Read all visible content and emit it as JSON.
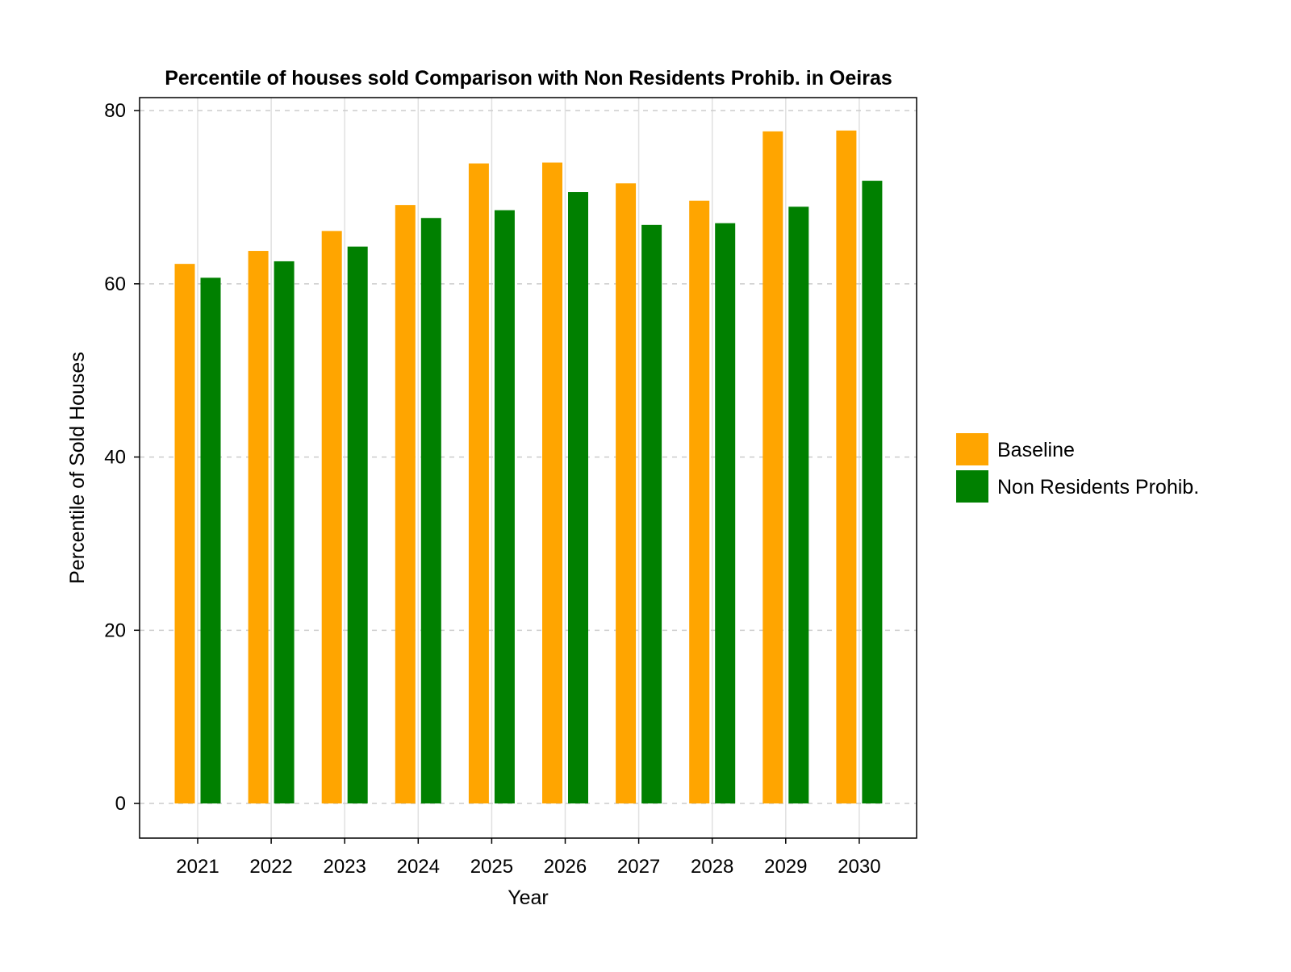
{
  "chart_data": {
    "type": "bar",
    "title": "Percentile of houses sold Comparison with Non Residents Prohib. in Oeiras",
    "xlabel": "Year",
    "ylabel": "Percentile of Sold Houses",
    "categories": [
      "2021",
      "2022",
      "2023",
      "2024",
      "2025",
      "2026",
      "2027",
      "2028",
      "2029",
      "2030"
    ],
    "series": [
      {
        "name": "Baseline",
        "color": "#FFA500",
        "values": [
          62.3,
          63.8,
          66.1,
          69.1,
          73.9,
          74.0,
          71.6,
          69.6,
          77.6,
          77.7
        ]
      },
      {
        "name": "Non Residents Prohib.",
        "color": "#008000",
        "values": [
          60.7,
          62.6,
          64.3,
          67.6,
          68.5,
          70.6,
          66.8,
          67.0,
          68.9,
          71.9
        ]
      }
    ],
    "ylim": [
      -4,
      81.5
    ],
    "yticks": [
      0,
      20,
      40,
      60,
      80
    ],
    "grid": true,
    "legend": "right"
  }
}
